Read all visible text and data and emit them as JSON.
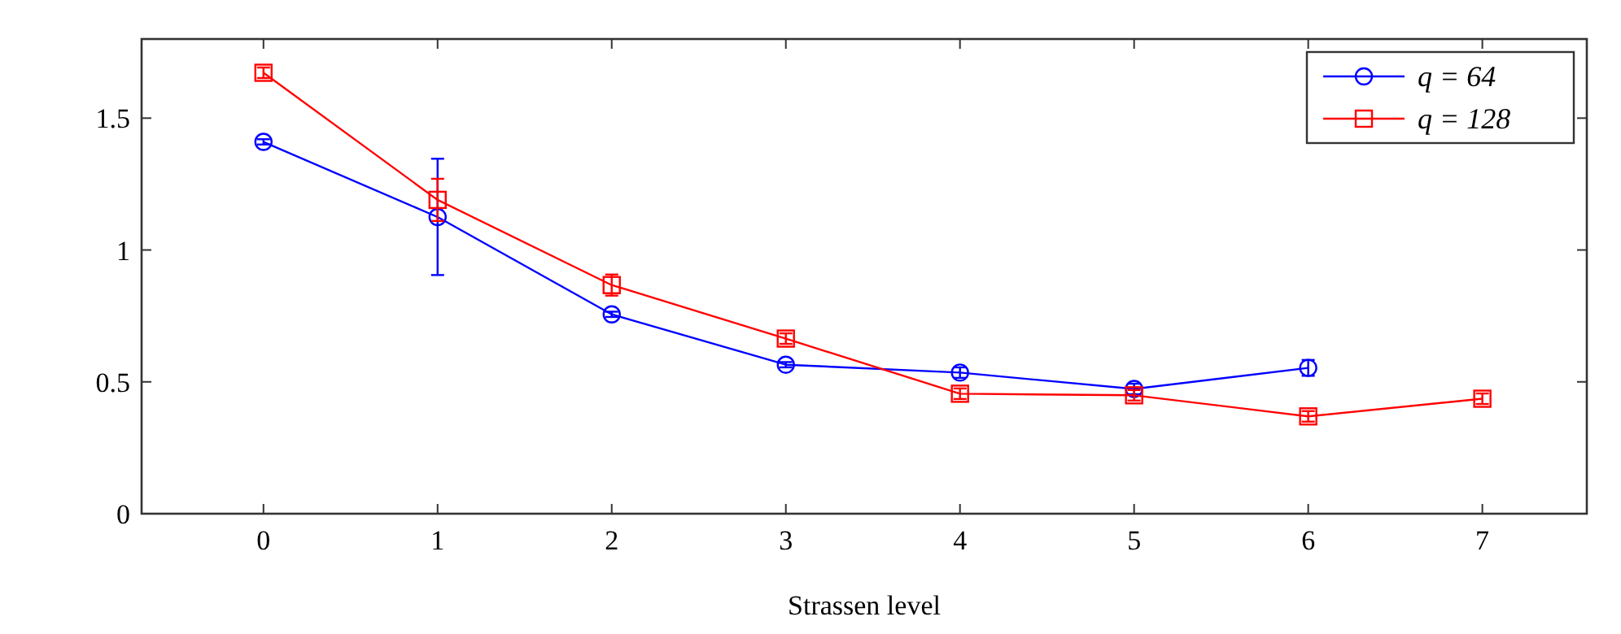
{
  "chart_data": {
    "type": "line",
    "xlabel": "Strassen level",
    "xlim": [
      -0.7,
      7.6
    ],
    "xticks": [
      0,
      1,
      2,
      3,
      4,
      5,
      6,
      7
    ],
    "ylim": [
      0,
      1.8
    ],
    "yticks": [
      0,
      0.5,
      1,
      1.5
    ],
    "legend": "top right",
    "grid": false,
    "series": [
      {
        "name": "q = 64",
        "color": "#0000ff",
        "marker": "circle",
        "x": [
          0,
          1,
          2,
          3,
          4,
          5,
          6
        ],
        "values": [
          1.41,
          1.125,
          0.756,
          0.565,
          0.535,
          0.473,
          0.553
        ],
        "errors": [
          0.01,
          [
            0.905,
            1.346
          ],
          0.01,
          0.01,
          0.02,
          0.02,
          0.03
        ]
      },
      {
        "name": "q = 128",
        "color": "#ff0000",
        "marker": "square",
        "x": [
          0,
          1,
          2,
          3,
          4,
          5,
          6,
          7
        ],
        "values": [
          1.672,
          1.19,
          0.867,
          0.664,
          0.455,
          0.449,
          0.369,
          0.436
        ],
        "errors": [
          0.02,
          0.08,
          0.04,
          0.02,
          0.02,
          0.02,
          0.02,
          0.02
        ]
      }
    ]
  }
}
